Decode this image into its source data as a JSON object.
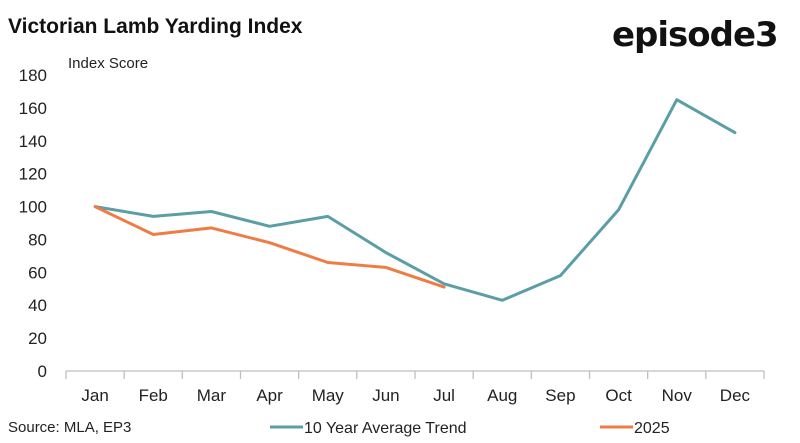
{
  "header": {
    "title": "Victorian Lamb Yarding Index",
    "logo_text": "episode3"
  },
  "footer": {
    "source": "Source: MLA, EP3"
  },
  "colors": {
    "series_trend": "#5b9ea6",
    "series_2025": "#ed7d45",
    "axis": "#bfbfbf"
  },
  "chart_data": {
    "type": "line",
    "title": "Victorian Lamb Yarding Index",
    "xlabel": "",
    "ylabel": "Index Score",
    "categories": [
      "Jan",
      "Feb",
      "Mar",
      "Apr",
      "May",
      "Jun",
      "Jul",
      "Aug",
      "Sep",
      "Oct",
      "Nov",
      "Dec"
    ],
    "ylim": [
      0,
      180
    ],
    "yticks": [
      0,
      20,
      40,
      60,
      80,
      100,
      120,
      140,
      160,
      180
    ],
    "grid": false,
    "legend_position": "bottom",
    "series": [
      {
        "name": "10 Year Average Trend",
        "color": "#5b9ea6",
        "values": [
          100,
          94,
          97,
          88,
          94,
          72,
          53,
          43,
          58,
          98,
          165,
          145
        ]
      },
      {
        "name": "2025",
        "color": "#ed7d45",
        "values": [
          100,
          83,
          87,
          78,
          66,
          63,
          51,
          null,
          null,
          null,
          null,
          null
        ]
      }
    ]
  }
}
